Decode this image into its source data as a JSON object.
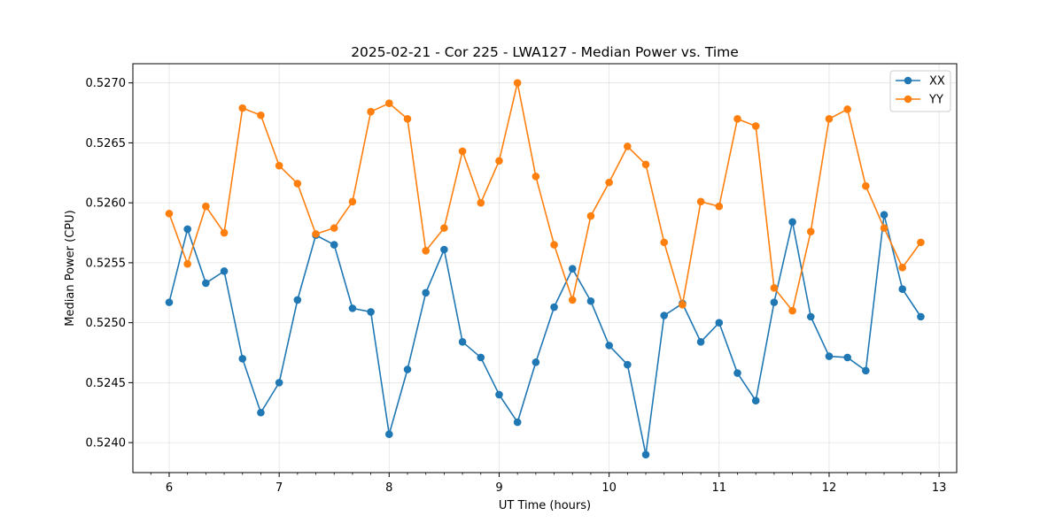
{
  "chart_data": {
    "type": "line",
    "title": "2025-02-21 - Cor 225 - LWA127 - Median Power vs. Time",
    "xlabel": "UT Time (hours)",
    "ylabel": "Median Power (CPU)",
    "xlim": [
      5.67,
      13.16
    ],
    "ylim": [
      0.52375,
      0.52716
    ],
    "xticks": [
      6,
      7,
      8,
      9,
      10,
      11,
      12,
      13
    ],
    "yticks": [
      0.524,
      0.5245,
      0.525,
      0.5255,
      0.526,
      0.5265,
      0.527
    ],
    "ytick_labels": [
      "0.5240",
      "0.5245",
      "0.5250",
      "0.5255",
      "0.5260",
      "0.5265",
      "0.5270"
    ],
    "grid": true,
    "legend_position": "top-right",
    "x": [
      6.0,
      6.1667,
      6.3333,
      6.5,
      6.6667,
      6.8333,
      7.0,
      7.1667,
      7.3333,
      7.5,
      7.6667,
      7.8333,
      8.0,
      8.1667,
      8.3333,
      8.5,
      8.6667,
      8.8333,
      9.0,
      9.1667,
      9.3333,
      9.5,
      9.6667,
      9.8333,
      10.0,
      10.1667,
      10.3333,
      10.5,
      10.6667,
      10.8333,
      11.0,
      11.1667,
      11.3333,
      11.5,
      11.6667,
      11.8333,
      12.0,
      12.1667,
      12.3333,
      12.5,
      12.6667,
      12.8333
    ],
    "series": [
      {
        "name": "XX",
        "color": "#1f77b4",
        "values": [
          0.52517,
          0.52578,
          0.52533,
          0.52543,
          0.5247,
          0.52425,
          0.5245,
          0.52519,
          0.52573,
          0.52565,
          0.52512,
          0.52509,
          0.52407,
          0.52461,
          0.52525,
          0.52561,
          0.52484,
          0.52471,
          0.5244,
          0.52417,
          0.52467,
          0.52513,
          0.52545,
          0.52518,
          0.52481,
          0.52465,
          0.5239,
          0.52506,
          0.52516,
          0.52484,
          0.525,
          0.52458,
          0.52435,
          0.52517,
          0.52584,
          0.52505,
          0.52472,
          0.52471,
          0.5246,
          0.5259,
          0.52528,
          0.52505
        ]
      },
      {
        "name": "YY",
        "color": "#ff7f0e",
        "values": [
          0.52591,
          0.52549,
          0.52597,
          0.52575,
          0.52679,
          0.52673,
          0.52631,
          0.52616,
          0.52574,
          0.52579,
          0.52601,
          0.52676,
          0.52683,
          0.5267,
          0.5256,
          0.52579,
          0.52643,
          0.526,
          0.52635,
          0.527,
          0.52622,
          0.52565,
          0.52519,
          0.52589,
          0.52617,
          0.52647,
          0.52632,
          0.52567,
          0.52515,
          0.52601,
          0.52597,
          0.5267,
          0.52664,
          0.52529,
          0.5251,
          0.52576,
          0.5267,
          0.52678,
          0.52614,
          0.52579,
          0.52546,
          0.52567
        ]
      }
    ]
  }
}
